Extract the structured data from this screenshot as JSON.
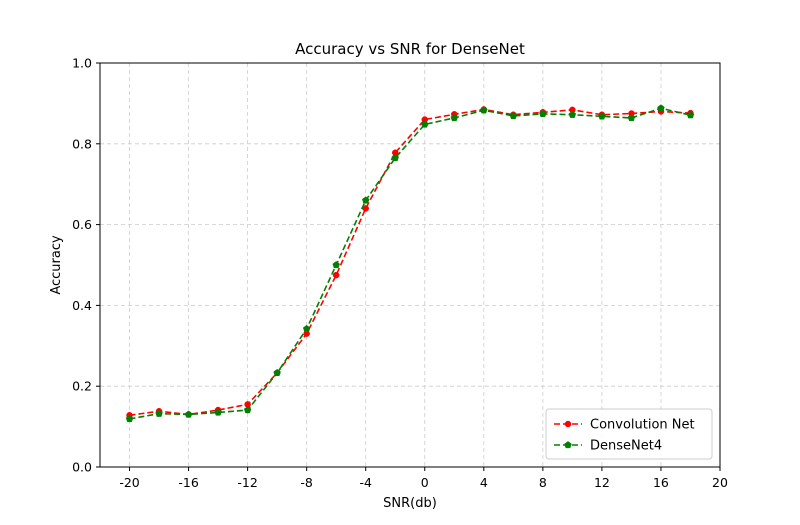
{
  "chart_data": {
    "type": "line",
    "title": "Accuracy vs SNR for DenseNet",
    "xlabel": "SNR(db)",
    "ylabel": "Accuracy",
    "xlim": [
      -22,
      20
    ],
    "ylim": [
      0.0,
      1.0
    ],
    "xticks": [
      -20,
      -16,
      -12,
      -8,
      -4,
      0,
      4,
      8,
      12,
      16,
      20
    ],
    "xtick_labels": [
      "-20",
      "-16",
      "-12",
      "-8",
      "-4",
      "0",
      "4",
      "8",
      "12",
      "16",
      "20"
    ],
    "yticks": [
      0.0,
      0.2,
      0.4,
      0.6,
      0.8,
      1.0
    ],
    "ytick_labels": [
      "0.0",
      "0.2",
      "0.4",
      "0.6",
      "0.8",
      "1.0"
    ],
    "grid": true,
    "legend_position": "lower-right",
    "x": [
      -20,
      -18,
      -16,
      -14,
      -12,
      -10,
      -8,
      -6,
      -4,
      -2,
      0,
      2,
      4,
      6,
      8,
      10,
      12,
      14,
      16,
      18
    ],
    "series": [
      {
        "name": "Convolution Net",
        "color": "#ff0000",
        "marker": "circle",
        "linestyle": "dashed",
        "values": [
          0.128,
          0.138,
          0.13,
          0.141,
          0.155,
          0.233,
          0.33,
          0.475,
          0.64,
          0.778,
          0.86,
          0.873,
          0.885,
          0.872,
          0.878,
          0.884,
          0.872,
          0.875,
          0.88,
          0.876
        ]
      },
      {
        "name": "DenseNet4",
        "color": "#008000",
        "marker": "pentagon",
        "linestyle": "dashed",
        "values": [
          0.119,
          0.132,
          0.13,
          0.135,
          0.141,
          0.233,
          0.342,
          0.5,
          0.66,
          0.765,
          0.848,
          0.864,
          0.883,
          0.869,
          0.874,
          0.872,
          0.868,
          0.864,
          0.888,
          0.871
        ]
      }
    ]
  }
}
